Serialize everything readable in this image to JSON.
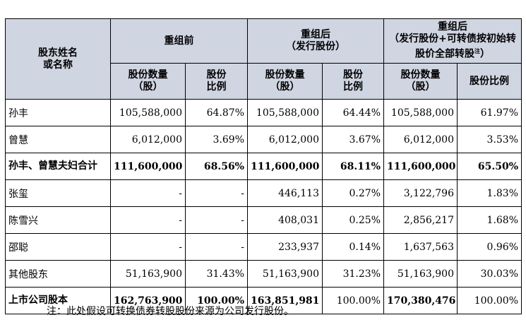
{
  "headers": {
    "name": "股东姓名\n或名称",
    "before": "重组前",
    "after_issue": "重组后\n（发行股份）",
    "after_full": "重组后\n（发行股份+可转债按初始转股价全部转股",
    "after_full_sup": "注",
    "close_paren": "）",
    "shares": "股份数量\n（股）",
    "ratio": "股份\n比例",
    "ratio_full": "股份比例"
  },
  "rows": [
    {
      "name": "孙丰",
      "v": [
        "105,588,000",
        "64.87%",
        "105,588,000",
        "64.44%",
        "105,588,000",
        "61.97%"
      ],
      "bold": false
    },
    {
      "name": "曾慧",
      "v": [
        "6,012,000",
        "3.69%",
        "6,012,000",
        "3.67%",
        "6,012,000",
        "3.53%"
      ],
      "bold": false
    },
    {
      "name": "孙丰、曾慧夫妇合计",
      "v": [
        "111,600,000",
        "68.56%",
        "111,600,000",
        "68.11%",
        "111,600,000",
        "65.50%"
      ],
      "bold": true
    },
    {
      "name": "张玺",
      "v": [
        "-",
        "-",
        "446,113",
        "0.27%",
        "3,122,796",
        "1.83%"
      ],
      "bold": false
    },
    {
      "name": "陈雪兴",
      "v": [
        "-",
        "-",
        "408,031",
        "0.25%",
        "2,856,217",
        "1.68%"
      ],
      "bold": false
    },
    {
      "name": "邵聪",
      "v": [
        "-",
        "-",
        "233,937",
        "0.14%",
        "1,637,563",
        "0.96%"
      ],
      "bold": false
    },
    {
      "name": "其他股东",
      "v": [
        "51,163,900",
        "31.43%",
        "51,163,900",
        "31.23%",
        "51,163,900",
        "30.03%"
      ],
      "bold": false
    },
    {
      "name": "上市公司股本",
      "v": [
        "162,763,900",
        "100.00%",
        "163,851,981",
        "100.00%",
        "170,380,476",
        "100.00%"
      ],
      "bold": true,
      "normal_cols": [
        3,
        5
      ]
    }
  ],
  "note": "注：此处假设可转换债券转股股份来源为公司发行股份。"
}
